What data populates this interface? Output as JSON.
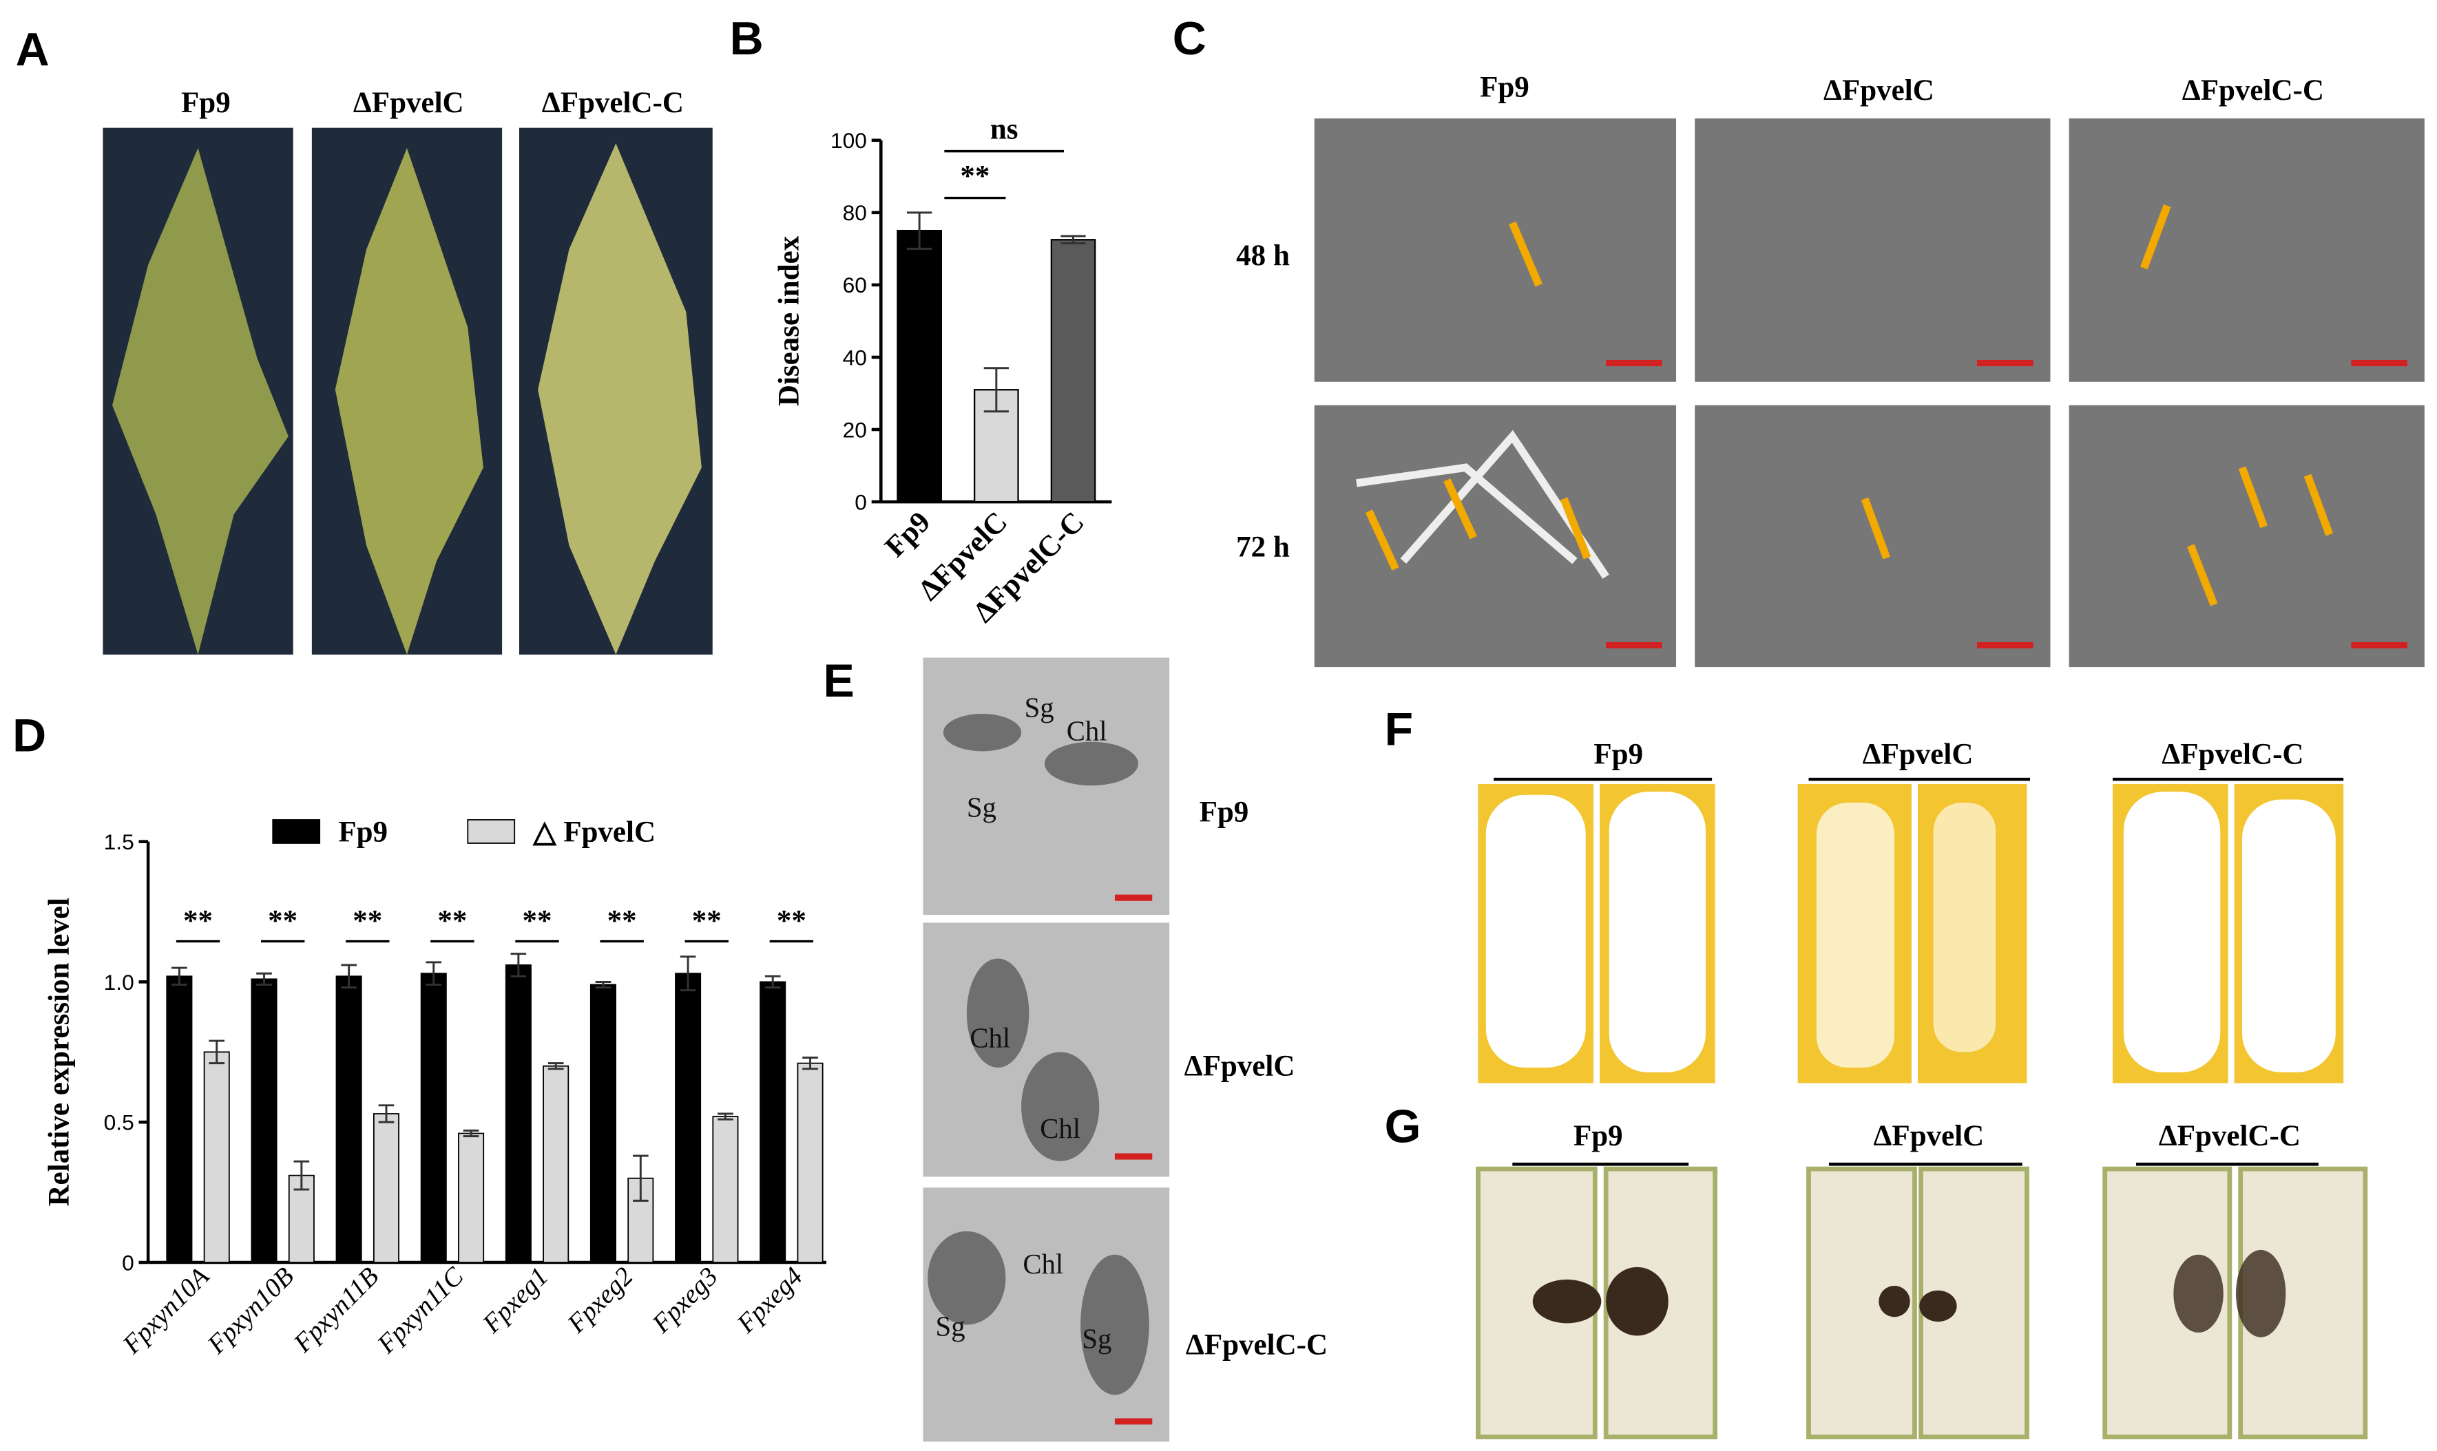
{
  "panels": {
    "letters": [
      "A",
      "B",
      "C",
      "D",
      "E",
      "F",
      "G"
    ],
    "panel_a": {
      "labels": [
        "Fp9",
        "ΔFpvelC",
        "ΔFpvelC-C"
      ]
    },
    "panel_c": {
      "columns": [
        "Fp9",
        "ΔFpvelC",
        "ΔFpvelC-C"
      ],
      "rows": [
        "48 h",
        "72 h"
      ]
    },
    "panel_e": {
      "rows": [
        "Fp9",
        "ΔFpvelC",
        "ΔFpvelC-C"
      ],
      "annotations": [
        "Sg",
        "Chl",
        "Sg",
        "Chl",
        "Chl",
        "Chl",
        "Sg",
        "Sg"
      ]
    },
    "panel_f": {
      "labels": [
        "Fp9",
        "ΔFpvelC",
        "ΔFpvelC-C"
      ]
    },
    "panel_g": {
      "labels": [
        "Fp9",
        "ΔFpvelC",
        "ΔFpvelC-C"
      ]
    }
  },
  "chart_data": [
    {
      "type": "bar",
      "y_label": "Disease index",
      "categories": [
        "Fp9",
        "ΔFpvelC",
        "ΔFpvelC-C"
      ],
      "values": [
        75,
        31,
        72.5
      ],
      "errors": [
        5,
        6,
        1
      ],
      "colors": [
        "#000000",
        "#d9d9d9",
        "#5a5a5a"
      ],
      "ylim": [
        0,
        100
      ],
      "yticks": [
        0,
        20,
        40,
        60,
        80,
        100
      ],
      "annotations": [
        "**",
        "ns"
      ]
    },
    {
      "type": "grouped_bar",
      "y_label": "Relative expression level",
      "categories": [
        "Fpxyn10A",
        "Fpxyn10B",
        "Fpxyn11B",
        "Fpxyn11C",
        "Fpxeg1",
        "Fpxeg2",
        "Fpxeg3",
        "Fpxeg4"
      ],
      "series": [
        {
          "name": "Fp9",
          "color": "#000000",
          "values": [
            1.02,
            1.01,
            1.02,
            1.03,
            1.06,
            0.99,
            1.03,
            1.0
          ],
          "errors": [
            0.03,
            0.02,
            0.04,
            0.04,
            0.04,
            0.01,
            0.06,
            0.02
          ]
        },
        {
          "name": "△ FpvelC",
          "color": "#d9d9d9",
          "values": [
            0.75,
            0.31,
            0.53,
            0.46,
            0.7,
            0.3,
            0.52,
            0.71
          ],
          "errors": [
            0.04,
            0.05,
            0.03,
            0.01,
            0.01,
            0.08,
            0.01,
            0.02
          ]
        }
      ],
      "ylim": [
        0,
        1.5
      ],
      "yticks": [
        0,
        {
          "value": 0.5,
          "label": "0.5"
        },
        {
          "value": 1,
          "label": "1.0"
        },
        {
          "value": 1.5,
          "label": "1.5"
        }
      ],
      "annotations": [
        "**",
        "**",
        "**",
        "**",
        "**",
        "**",
        "**",
        "**"
      ]
    }
  ]
}
